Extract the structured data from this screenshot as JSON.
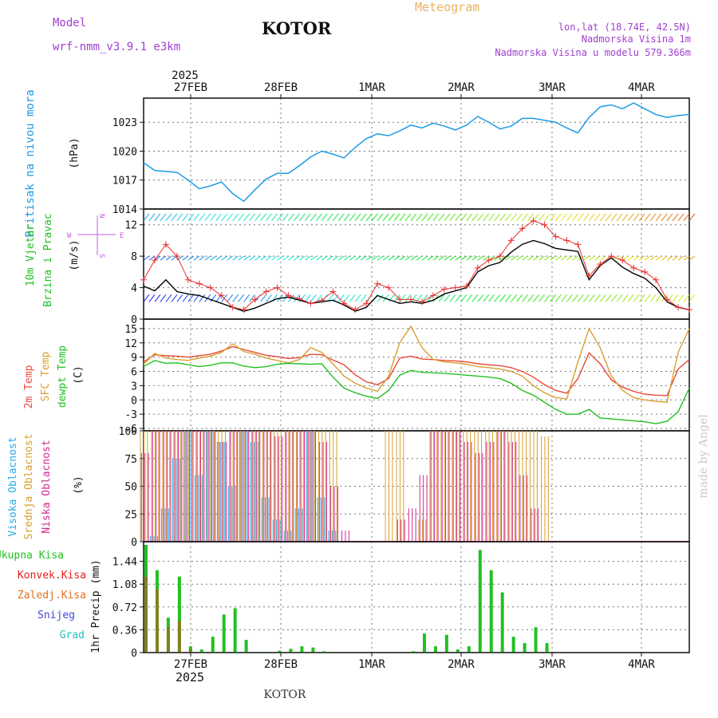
{
  "header": {
    "meteogram": "Meteogram",
    "model_label": "Model",
    "model_name": "wrf-nmm_v3.9.1 e3km",
    "station": "KOTOR",
    "lonlat": "lon,lat (18.74E, 42.5N)",
    "elevation": "Nadmorska Visina 1m",
    "model_elevation": "Nadmorska Visina u modelu 579.366m"
  },
  "footer": {
    "station": "KOTOR",
    "credit": "made by Angel"
  },
  "colors": {
    "pressure": "#1e9be6",
    "wind_black": "#000000",
    "gust": "#e83030",
    "t2m": "#e84a3a",
    "sfc": "#d8a030",
    "dewpt": "#22c022",
    "cloud_high": "#2aa8e8",
    "cloud_mid": "#d8a030",
    "cloud_low": "#d02a90",
    "precip_total": "#22c022",
    "precip_conv": "#e02020",
    "precip_frozen": "#e07020",
    "snow": "#4444dd",
    "graupel": "#22c0c0"
  },
  "time_axis": {
    "top_year": "2025",
    "bottom_year": "2025",
    "dates": [
      "27FEB",
      "28FEB",
      "1MAR",
      "2MAR",
      "3MAR",
      "4MAR"
    ]
  },
  "chart_data": [
    {
      "type": "line",
      "name": "pressure",
      "title": "Pritisak na nivou mora",
      "ylabel": "(hPa)",
      "ylim": [
        1014,
        1025.5
      ],
      "yticks": [
        1014,
        1017,
        1020,
        1023
      ],
      "x": [
        0,
        3,
        6,
        9,
        12,
        15,
        18,
        21,
        24,
        27,
        30,
        33,
        36,
        39,
        42,
        45,
        48,
        51,
        54,
        57,
        60,
        63,
        66,
        69,
        72,
        75,
        78,
        81,
        84,
        87,
        90,
        93,
        96,
        99,
        102,
        105,
        108,
        111,
        114,
        117,
        120,
        123,
        126,
        129,
        132,
        135,
        138,
        141,
        144,
        147
      ],
      "values": [
        1018.8,
        1018.0,
        1017.9,
        1017.8,
        1017.0,
        1016.1,
        1016.4,
        1016.8,
        1015.6,
        1014.8,
        1016.0,
        1017.1,
        1017.7,
        1017.7,
        1018.5,
        1019.4,
        1020.0,
        1019.7,
        1019.3,
        1020.4,
        1021.3,
        1021.8,
        1021.6,
        1022.1,
        1022.7,
        1022.4,
        1022.9,
        1022.6,
        1022.2,
        1022.7,
        1023.6,
        1023.0,
        1022.3,
        1022.6,
        1023.4,
        1023.4,
        1023.2,
        1023.0,
        1022.4,
        1021.9,
        1023.5,
        1024.6,
        1024.8,
        1024.4,
        1025.0,
        1024.4,
        1023.8,
        1023.5,
        1023.7,
        1023.8
      ]
    },
    {
      "type": "line",
      "name": "wind",
      "title": "10m Vjetar Brzina i Pravac",
      "ylabel": "(m/s)",
      "compass": {
        "n": "N",
        "e": "E",
        "w": "W",
        "s": "S"
      },
      "ylim": [
        0,
        14
      ],
      "yticks": [
        0,
        4,
        8,
        12
      ],
      "x": [
        0,
        3,
        6,
        9,
        12,
        15,
        18,
        21,
        24,
        27,
        30,
        33,
        36,
        39,
        42,
        45,
        48,
        51,
        54,
        57,
        60,
        63,
        66,
        69,
        72,
        75,
        78,
        81,
        84,
        87,
        90,
        93,
        96,
        99,
        102,
        105,
        108,
        111,
        114,
        117,
        120,
        123,
        126,
        129,
        132,
        135,
        138,
        141,
        144,
        147
      ],
      "series": [
        {
          "name": "speed",
          "values": [
            4.2,
            3.6,
            5.0,
            3.5,
            3.2,
            3.0,
            2.5,
            2.0,
            1.5,
            1.0,
            1.4,
            2.0,
            2.6,
            2.8,
            2.4,
            2.0,
            2.2,
            2.4,
            1.8,
            1.0,
            1.5,
            3.0,
            2.5,
            2.0,
            2.2,
            2.0,
            2.4,
            3.2,
            3.6,
            4.0,
            6.0,
            6.8,
            7.2,
            8.5,
            9.5,
            10.0,
            9.6,
            9.0,
            8.8,
            8.6,
            5.0,
            6.8,
            7.8,
            6.6,
            5.8,
            5.2,
            4.0,
            2.2,
            1.5,
            1.2
          ]
        },
        {
          "name": "gust",
          "values": [
            5.0,
            7.5,
            9.5,
            8.0,
            5.0,
            4.5,
            4.0,
            3.0,
            1.5,
            1.2,
            2.5,
            3.5,
            4.0,
            3.0,
            2.6,
            2.0,
            2.4,
            3.5,
            2.0,
            1.2,
            2.0,
            4.5,
            4.0,
            2.5,
            2.5,
            2.2,
            3.0,
            3.8,
            4.0,
            4.2,
            6.5,
            7.5,
            8.0,
            10.0,
            11.5,
            12.5,
            12.0,
            10.5,
            10.0,
            9.5,
            5.5,
            7.0,
            8.0,
            7.5,
            6.5,
            6.0,
            5.0,
            2.5,
            1.5,
            1.2
          ]
        }
      ]
    },
    {
      "type": "line",
      "name": "temperature",
      "title": "2m Temp / SFC Temp / dewpt Temp",
      "legend": [
        "2m Temp",
        "SFC Temp",
        "dewpt Temp"
      ],
      "ylabel": "(C)",
      "ylim": [
        -6.5,
        17
      ],
      "yticks": [
        -6,
        -3,
        0,
        3,
        6,
        9,
        12,
        15
      ],
      "x": [
        0,
        3,
        6,
        9,
        12,
        15,
        18,
        21,
        24,
        27,
        30,
        33,
        36,
        39,
        42,
        45,
        48,
        51,
        54,
        57,
        60,
        63,
        66,
        69,
        72,
        75,
        78,
        81,
        84,
        87,
        90,
        93,
        96,
        99,
        102,
        105,
        108,
        111,
        114,
        117,
        120,
        123,
        126,
        129,
        132,
        135,
        138,
        141,
        144,
        147
      ],
      "series": [
        {
          "name": "2m Temp",
          "values": [
            8.0,
            9.5,
            9.3,
            9.2,
            9.0,
            9.3,
            9.6,
            10.3,
            11.2,
            10.6,
            10.0,
            9.4,
            9.1,
            8.7,
            8.9,
            9.6,
            9.5,
            8.4,
            7.4,
            5.3,
            3.8,
            3.2,
            4.5,
            8.8,
            9.2,
            8.6,
            8.5,
            8.3,
            8.2,
            8.0,
            7.6,
            7.4,
            7.2,
            6.8,
            6.0,
            4.8,
            3.2,
            2.0,
            1.4,
            4.5,
            9.9,
            7.6,
            4.2,
            2.7,
            1.8,
            1.2,
            1.0,
            0.9,
            6.5,
            8.5
          ]
        },
        {
          "name": "SFC Temp",
          "values": [
            7.5,
            9.8,
            8.8,
            8.5,
            8.3,
            8.8,
            9.2,
            10.0,
            11.8,
            10.2,
            9.6,
            8.8,
            8.3,
            7.8,
            8.5,
            11.0,
            10.0,
            7.6,
            5.0,
            3.5,
            2.5,
            1.8,
            5.0,
            12.0,
            15.5,
            11.0,
            8.5,
            8.0,
            7.8,
            7.5,
            7.0,
            6.8,
            6.5,
            6.0,
            5.0,
            3.0,
            1.5,
            0.5,
            0.2,
            8.0,
            15.0,
            11.0,
            5.0,
            2.0,
            0.5,
            0.0,
            -0.3,
            -0.5,
            10.0,
            15.0
          ]
        },
        {
          "name": "dewpt Temp",
          "values": [
            7.0,
            8.3,
            7.7,
            7.8,
            7.4,
            7.0,
            7.3,
            7.8,
            7.8,
            7.1,
            6.8,
            7.0,
            7.5,
            7.7,
            7.6,
            7.5,
            7.6,
            4.8,
            2.5,
            1.5,
            0.8,
            0.3,
            2.0,
            5.2,
            6.2,
            5.8,
            5.7,
            5.6,
            5.4,
            5.2,
            5.0,
            4.8,
            4.5,
            3.5,
            2.0,
            1.0,
            -0.5,
            -2.0,
            -3.0,
            -3.0,
            -2.0,
            -3.8,
            -4.0,
            -4.2,
            -4.4,
            -4.6,
            -5.0,
            -4.5,
            -2.5,
            2.5
          ]
        }
      ]
    },
    {
      "type": "bar",
      "name": "cloud",
      "title": "Visoka Oblacnost / Srednja Oblacnost / Niska Oblacnost",
      "legend": [
        "Visoka Oblacnost",
        "Srednja Oblacnost",
        "Niska Oblacnost"
      ],
      "ylabel": "(%)",
      "ylim": [
        0,
        100
      ],
      "yticks": [
        0,
        25,
        50,
        75,
        100
      ],
      "x": [
        0,
        3,
        6,
        9,
        12,
        15,
        18,
        21,
        24,
        27,
        30,
        33,
        36,
        39,
        42,
        45,
        48,
        51,
        54,
        57,
        60,
        63,
        66,
        69,
        72,
        75,
        78,
        81,
        84,
        87,
        90,
        93,
        96,
        99,
        102,
        105,
        108,
        111,
        114,
        117,
        120,
        123,
        126,
        129,
        132,
        135,
        138,
        141,
        144,
        147
      ],
      "series": [
        {
          "name": "Visoka Oblacnost",
          "values": [
            0,
            5,
            30,
            75,
            100,
            60,
            100,
            90,
            50,
            100,
            90,
            40,
            20,
            10,
            30,
            100,
            40,
            10,
            0,
            0,
            0,
            0,
            0,
            0,
            0,
            0,
            0,
            0,
            0,
            0,
            0,
            0,
            0,
            0,
            0,
            0,
            0,
            0,
            0,
            0,
            0,
            0,
            0,
            0,
            0,
            0,
            0,
            0,
            0,
            0
          ]
        },
        {
          "name": "Srednja Oblacnost",
          "values": [
            100,
            100,
            100,
            100,
            100,
            100,
            100,
            100,
            100,
            100,
            100,
            100,
            100,
            100,
            100,
            100,
            100,
            100,
            0,
            0,
            0,
            0,
            100,
            100,
            0,
            20,
            100,
            100,
            100,
            100,
            100,
            100,
            100,
            100,
            100,
            100,
            95,
            0,
            0,
            0,
            0,
            0,
            0,
            0,
            0,
            0,
            0,
            0,
            0,
            0
          ]
        },
        {
          "name": "Niska Oblacnost",
          "values": [
            80,
            100,
            100,
            100,
            100,
            100,
            100,
            90,
            100,
            100,
            100,
            100,
            95,
            100,
            100,
            100,
            90,
            50,
            10,
            0,
            0,
            0,
            0,
            20,
            30,
            60,
            100,
            100,
            100,
            90,
            80,
            90,
            100,
            90,
            60,
            30,
            0,
            0,
            0,
            0,
            0,
            0,
            0,
            0,
            0,
            0,
            0,
            0,
            0,
            0
          ]
        }
      ]
    },
    {
      "type": "bar",
      "name": "precip",
      "title": "1hr Precip",
      "legend": [
        "Ukupna Kisa",
        "Konvek.Kisa",
        "Zaledj.Kisa",
        "Snijeg",
        "Grad"
      ],
      "ylabel": "1hr Precip (mm)",
      "ylim": [
        0,
        1.75
      ],
      "yticks": [
        0,
        0.36,
        0.72,
        1.08,
        1.44
      ],
      "ytick_labels": [
        "0",
        "0.36",
        "0.72",
        "1.08",
        "1.44"
      ],
      "x": [
        0,
        3,
        6,
        9,
        12,
        15,
        18,
        21,
        24,
        27,
        30,
        33,
        36,
        39,
        42,
        45,
        48,
        51,
        54,
        57,
        60,
        63,
        66,
        69,
        72,
        75,
        78,
        81,
        84,
        87,
        90,
        93,
        96,
        99,
        102,
        105,
        108,
        111,
        114,
        117,
        120,
        123,
        126,
        129,
        132,
        135,
        138,
        141,
        144,
        147
      ],
      "series": [
        {
          "name": "Ukupna Kisa",
          "values": [
            1.7,
            1.3,
            0.55,
            1.2,
            0.1,
            0.05,
            0.25,
            0.6,
            0.7,
            0.2,
            0.01,
            0.01,
            0.03,
            0.06,
            0.1,
            0.08,
            0.02,
            0.0,
            0.0,
            0.0,
            0.0,
            0.0,
            0.0,
            0.0,
            0.02,
            0.3,
            0.1,
            0.28,
            0.05,
            0.1,
            1.62,
            1.3,
            0.95,
            0.25,
            0.15,
            0.4,
            0.15,
            0.0,
            0.0,
            0.0,
            0.0,
            0.0,
            0.0,
            0.0,
            0.0,
            0.0,
            0.0,
            0.0,
            0.0,
            0.0
          ]
        },
        {
          "name": "Konvek.Kisa",
          "values": [
            1.2,
            1.0,
            0.4,
            0.5,
            0.05,
            0.0,
            0.0,
            0.0,
            0.0,
            0.0,
            0.0,
            0.0,
            0.0,
            0.0,
            0.0,
            0.0,
            0.0,
            0.0,
            0.0,
            0.0,
            0.0,
            0.0,
            0.0,
            0.0,
            0.0,
            0.0,
            0.0,
            0.0,
            0.0,
            0.0,
            0.0,
            0.0,
            0.0,
            0.0,
            0.0,
            0.0,
            0.0,
            0.0,
            0.0,
            0.0,
            0.0,
            0.0,
            0.0,
            0.0,
            0.0,
            0.0,
            0.0,
            0.0,
            0.0,
            0.0
          ]
        }
      ]
    }
  ]
}
